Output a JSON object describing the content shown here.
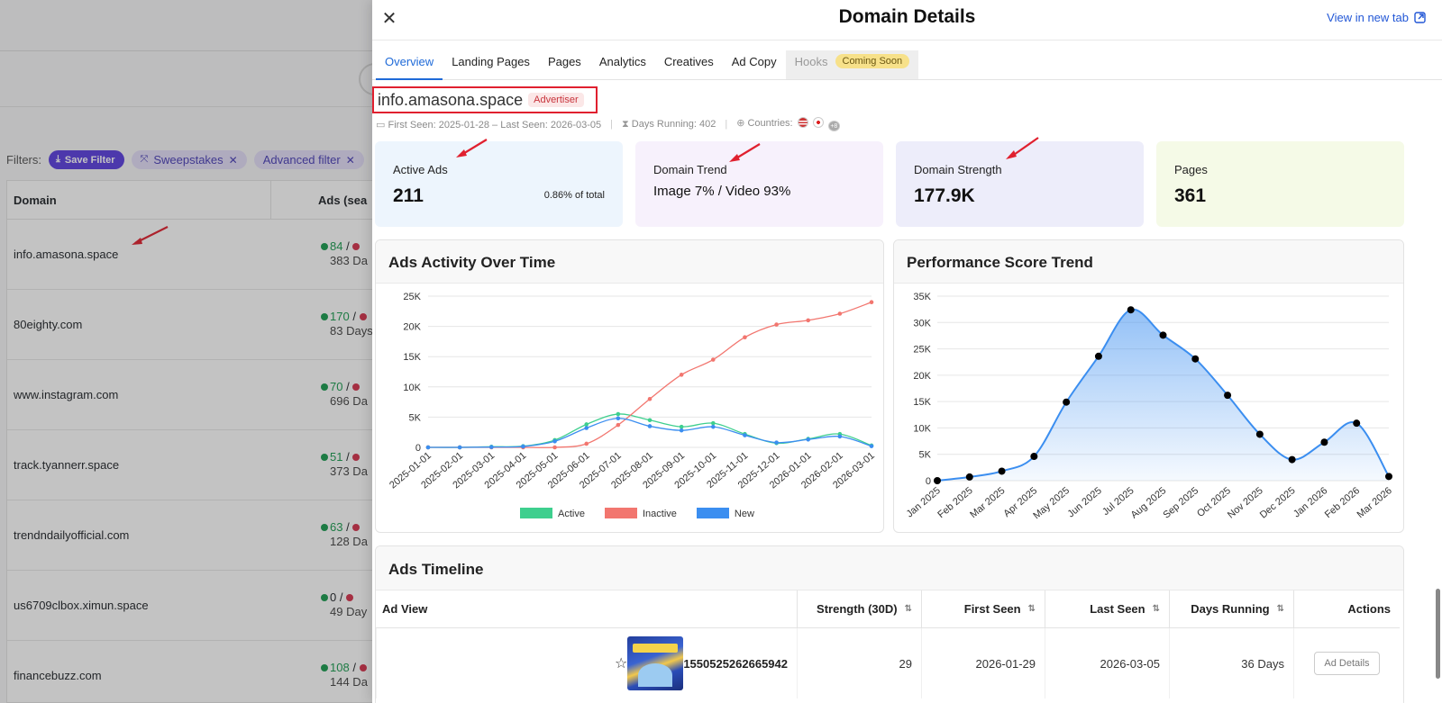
{
  "background": {
    "filters_label": "Filters:",
    "save_filter": "Save Filter",
    "chips": [
      "Sweepstakes",
      "Advanced filter"
    ],
    "table_headers": {
      "domain": "Domain",
      "ads": "Ads (sea"
    },
    "rows": [
      {
        "domain": "info.amasona.space",
        "active": "84",
        "sep": "/",
        "days": "383 Da",
        "dot": "g"
      },
      {
        "domain": "80eighty.com",
        "active": "170",
        "sep": "/",
        "days": "83 Days",
        "dot": "g"
      },
      {
        "domain": "www.instagram.com",
        "active": "70",
        "sep": "/",
        "days": "696 Da",
        "dot": "g"
      },
      {
        "domain": "track.tyannerr.space",
        "active": "51",
        "sep": "/",
        "days": "373 Da",
        "dot": "g"
      },
      {
        "domain": "trendndailyofficial.com",
        "active": "63",
        "sep": "/",
        "days": "128 Da",
        "dot": "g"
      },
      {
        "domain": "us6709clbox.ximun.space",
        "active": "0",
        "sep": "/",
        "days": "49 Day",
        "dot": "r"
      },
      {
        "domain": "financebuzz.com",
        "active": "108",
        "sep": "/",
        "days": "144 Da",
        "dot": "g"
      }
    ]
  },
  "drawer": {
    "title": "Domain Details",
    "view_new_tab": "View in new tab",
    "tabs": [
      "Overview",
      "Landing Pages",
      "Pages",
      "Analytics",
      "Creatives",
      "Ad Copy"
    ],
    "hooks_tab": "Hooks",
    "coming_soon": "Coming Soon",
    "domain": "info.amasona.space",
    "badge": "Advertiser",
    "first_last_seen": "First Seen: 2025-01-28 – Last Seen: 2026-03-05",
    "days_running": "Days Running: 402",
    "countries_label": "Countries:",
    "countries_more": "+8",
    "cards": {
      "active_ads": {
        "label": "Active Ads",
        "value": "211",
        "pct": "0.86% of total"
      },
      "domain_trend": {
        "label": "Domain Trend",
        "value": "Image 7% / Video 93%"
      },
      "domain_strength": {
        "label": "Domain Strength",
        "value": "177.9K"
      },
      "pages": {
        "label": "Pages",
        "value": "361"
      }
    },
    "activity_title": "Ads Activity Over Time",
    "performance_title": "Performance Score Trend",
    "timeline": {
      "title": "Ads Timeline",
      "headers": [
        "Ad View",
        "Strength (30D)",
        "First Seen",
        "Last Seen",
        "Days Running",
        "Actions"
      ],
      "row": {
        "id": "1550525262665942",
        "strength": "29",
        "first_seen": "2026-01-29",
        "last_seen": "2026-03-05",
        "days": "36 Days",
        "action": "Ad Details"
      }
    }
  },
  "colors": {
    "active": "#3ecf8e",
    "inactive": "#f2766f",
    "new": "#3b8ef0",
    "perf": "#3b8ef0"
  },
  "chart_data": [
    {
      "type": "line",
      "title": "Ads Activity Over Time",
      "x": [
        "2025-01-01",
        "2025-02-01",
        "2025-03-01",
        "2025-04-01",
        "2025-05-01",
        "2025-06-01",
        "2025-07-01",
        "2025-08-01",
        "2025-09-01",
        "2025-10-01",
        "2025-11-01",
        "2025-12-01",
        "2026-01-01",
        "2026-02-01",
        "2026-03-01"
      ],
      "ylim": [
        0,
        25000
      ],
      "yticks": [
        "0",
        "5K",
        "10K",
        "15K",
        "20K",
        "25K"
      ],
      "legend_position": "bottom",
      "series": [
        {
          "name": "Active",
          "values": [
            0,
            0,
            100,
            200,
            1200,
            3800,
            5500,
            4500,
            3400,
            4000,
            2200,
            700,
            1400,
            2200,
            300
          ]
        },
        {
          "name": "Inactive",
          "values": [
            0,
            0,
            0,
            0,
            0,
            600,
            3700,
            8000,
            12000,
            14500,
            18200,
            20300,
            21000,
            22100,
            24000
          ]
        },
        {
          "name": "New",
          "values": [
            0,
            0,
            50,
            150,
            1000,
            3200,
            4800,
            3500,
            2800,
            3400,
            2000,
            800,
            1300,
            1800,
            200
          ]
        }
      ]
    },
    {
      "type": "area",
      "title": "Performance Score Trend",
      "x": [
        "Jan 2025",
        "Feb 2025",
        "Mar 2025",
        "Apr 2025",
        "May 2025",
        "Jun 2025",
        "Jul 2025",
        "Aug 2025",
        "Sep 2025",
        "Oct 2025",
        "Nov 2025",
        "Dec 2025",
        "Jan 2026",
        "Feb 2026",
        "Mar 2026"
      ],
      "ylim": [
        0,
        35000
      ],
      "yticks": [
        "0",
        "5K",
        "10K",
        "15K",
        "20K",
        "25K",
        "30K",
        "35K"
      ],
      "values": [
        0,
        700,
        1800,
        4600,
        14900,
        23600,
        32400,
        27600,
        23100,
        16200,
        8800,
        4000,
        7300,
        10900,
        800
      ]
    }
  ]
}
